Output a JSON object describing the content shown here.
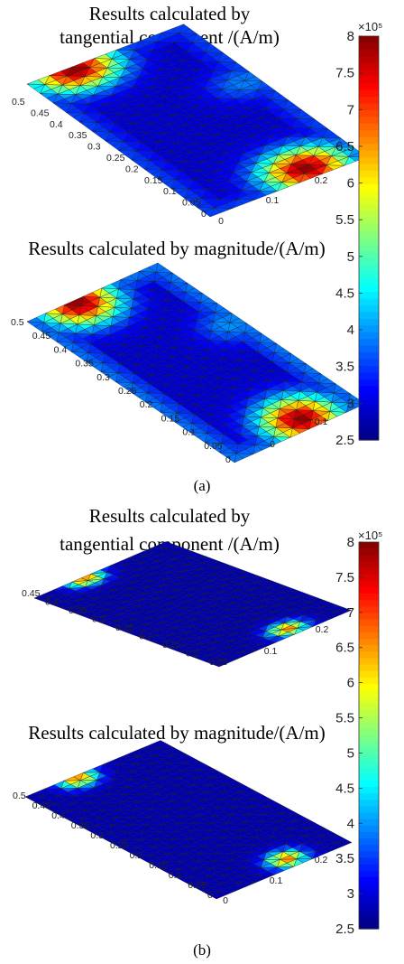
{
  "figure": {
    "panel_a": {
      "caption": "(a)",
      "colorbar": {
        "ticks": [
          "8",
          "7.5",
          "7",
          "6.5",
          "6",
          "5.5",
          "5",
          "4.5",
          "4",
          "3.5",
          "3",
          "2.5"
        ],
        "exponent": "×10⁵"
      },
      "plot1": {
        "title_line1": "Results calculated by",
        "title_line2": "tangential component /(A/m)"
      },
      "plot2": {
        "title_line1": "Results calculated by magnitude/(A/m)"
      }
    },
    "panel_b": {
      "caption": "(b)",
      "colorbar": {
        "ticks": [
          "8",
          "7.5",
          "7",
          "6.5",
          "6",
          "5.5",
          "5",
          "4.5",
          "4",
          "3.5",
          "3",
          "2.5"
        ],
        "exponent": "×10⁵"
      },
      "plot1": {
        "title_line1": "Results calculated by",
        "title_line2": "tangential component /(A/m)"
      },
      "plot2": {
        "title_line1": "Results calculated by magnitude/(A/m)"
      }
    }
  },
  "chart_data": [
    {
      "type": "heatmap",
      "panel": "a",
      "subplot": 1,
      "title": "Results calculated by tangential component /(A/m)",
      "y_ticks": [
        "0.5",
        "0.45",
        "0.4",
        "0.35",
        "0.3",
        "0.25",
        "0.2",
        "0.15",
        "0.1",
        "0.05",
        "0"
      ],
      "x_ticks": [
        "0",
        "0.1",
        "0.2"
      ],
      "clim": [
        250000.0,
        800000.0
      ],
      "colormap": "jet",
      "colorbar_exponent": 5,
      "background_level": 295000.0,
      "hotspots": [
        {
          "x": 0.07,
          "y": 0.49,
          "peak": 790000.0,
          "spread": 0.06
        },
        {
          "x": 0.17,
          "y": 0.03,
          "peak": 790000.0,
          "spread": 0.06
        },
        {
          "x": 0.23,
          "y": 0.3,
          "peak": 390000.0,
          "spread": 0.05
        }
      ],
      "edge_band": {
        "value": 360000.0,
        "width": 0.03
      }
    },
    {
      "type": "heatmap",
      "panel": "a",
      "subplot": 2,
      "title": "Results calculated by magnitude/(A/m)",
      "y_ticks": [
        "0.5",
        "0.45",
        "0.4",
        "0.35",
        "0.3",
        "0.25",
        "0.2",
        "0.15",
        "0.1",
        "0.05",
        "0"
      ],
      "x_ticks": [
        "0",
        "0.1"
      ],
      "clim": [
        250000.0,
        800000.0
      ],
      "colormap": "jet",
      "colorbar_exponent": 5,
      "background_level": 295000.0,
      "hotspots": [
        {
          "x": 0.09,
          "y": 0.49,
          "peak": 790000.0,
          "spread": 0.06
        },
        {
          "x": 0.15,
          "y": 0.03,
          "peak": 790000.0,
          "spread": 0.06
        },
        {
          "x": 0.23,
          "y": 0.3,
          "peak": 400000.0,
          "spread": 0.05
        }
      ],
      "edge_band": {
        "value": 390000.0,
        "width": 0.035
      }
    },
    {
      "type": "heatmap",
      "panel": "b",
      "subplot": 1,
      "title": "Results calculated by tangential component /(A/m)",
      "y_ticks": [
        "0.45",
        "0.4",
        "0.35",
        "0.3",
        "0.25",
        "0.2",
        "0.15",
        "0.1",
        "0.05"
      ],
      "x_ticks": [
        "0.1",
        "0.2"
      ],
      "clim": [
        250000.0,
        800000.0
      ],
      "colormap": "jet",
      "colorbar_exponent": 5,
      "background_level": 280000.0,
      "hotspots": [
        {
          "x": 0.09,
          "y": 0.49,
          "peak": 660000.0,
          "spread": 0.03
        },
        {
          "x": 0.15,
          "y": 0.03,
          "peak": 660000.0,
          "spread": 0.03
        }
      ],
      "edge_band": {
        "value": 280000.0,
        "width": 0.0
      }
    },
    {
      "type": "heatmap",
      "panel": "b",
      "subplot": 2,
      "title": "Results calculated by magnitude/(A/m)",
      "y_ticks": [
        "0.5",
        "0.45",
        "0.4",
        "0.35",
        "0.3",
        "0.25",
        "0.2",
        "0.15",
        "0.1",
        "0.05",
        "0"
      ],
      "x_ticks": [
        "0",
        "0.1",
        "0.2"
      ],
      "clim": [
        250000.0,
        800000.0
      ],
      "colormap": "jet",
      "colorbar_exponent": 5,
      "background_level": 280000.0,
      "hotspots": [
        {
          "x": 0.09,
          "y": 0.49,
          "peak": 660000.0,
          "spread": 0.03
        },
        {
          "x": 0.15,
          "y": 0.03,
          "peak": 660000.0,
          "spread": 0.03
        }
      ],
      "edge_band": {
        "value": 280000.0,
        "width": 0.0
      }
    }
  ]
}
